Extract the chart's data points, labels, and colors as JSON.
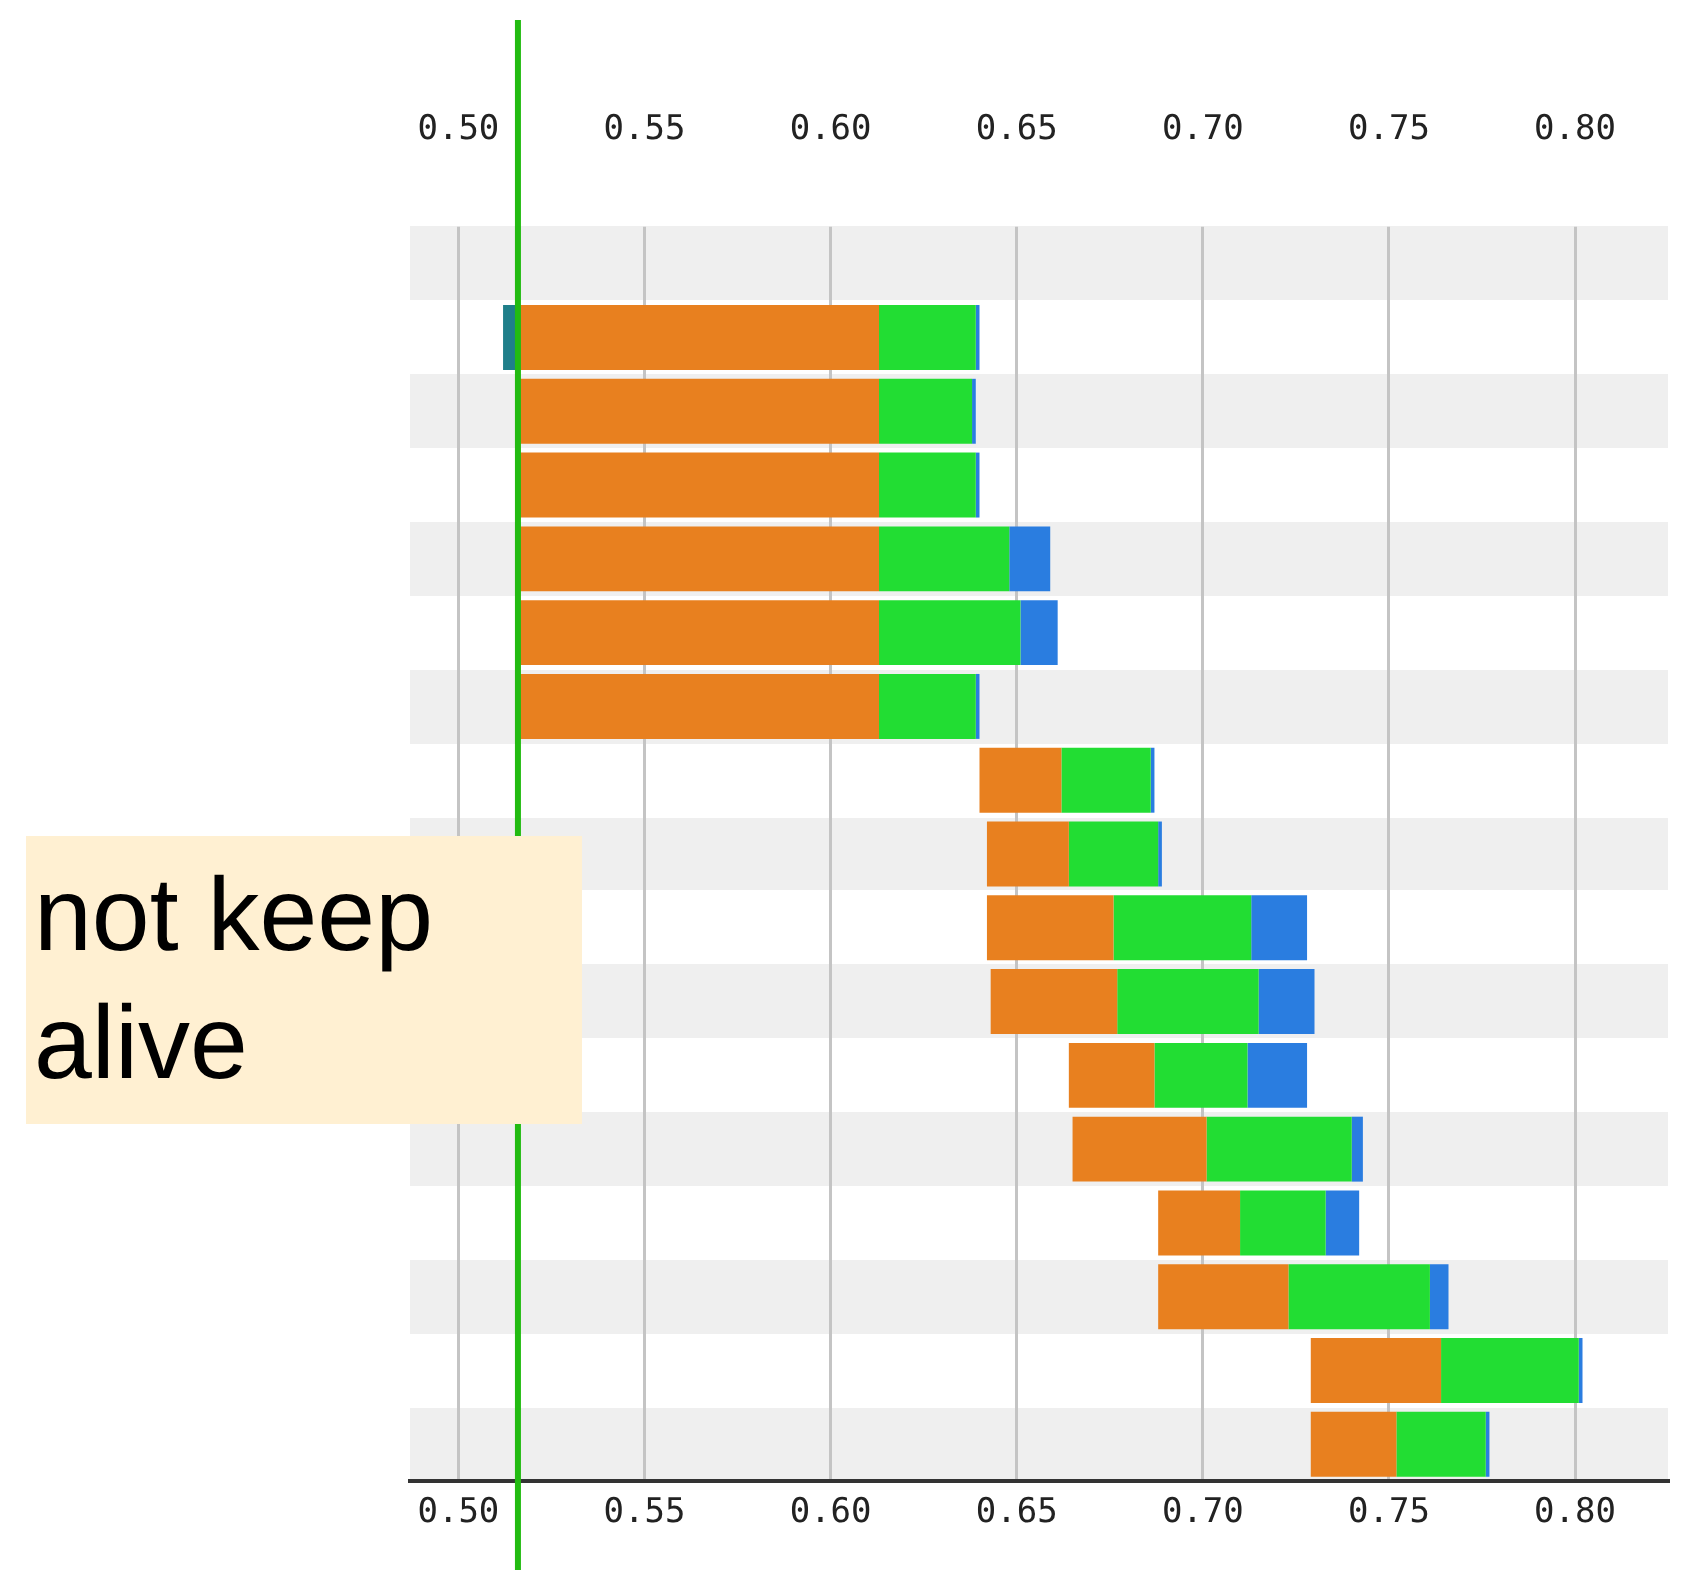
{
  "chart_data": {
    "type": "bar",
    "orientation": "horizontal",
    "categories": [
      null,
      null,
      null,
      null,
      null,
      null,
      null,
      null,
      null,
      null,
      null,
      null,
      null,
      null,
      null,
      null,
      null
    ],
    "series": [
      {
        "color": "#1f7f8a",
        "base": [
          null,
          0.512,
          null,
          null,
          null,
          null,
          null,
          null,
          null,
          null,
          null,
          null,
          null,
          null,
          null,
          null,
          null
        ],
        "values": [
          null,
          0.004,
          null,
          null,
          null,
          null,
          null,
          null,
          null,
          null,
          null,
          null,
          null,
          null,
          null,
          null,
          null
        ]
      },
      {
        "color": "#e8801f",
        "base": [
          null,
          0.516,
          0.516,
          0.516,
          0.516,
          0.516,
          0.516,
          0.64,
          0.642,
          0.642,
          0.643,
          0.664,
          0.665,
          0.688,
          0.688,
          0.729,
          0.729
        ],
        "values": [
          null,
          0.097,
          0.097,
          0.097,
          0.097,
          0.097,
          0.097,
          0.022,
          0.022,
          0.034,
          0.034,
          0.023,
          0.036,
          0.022,
          0.035,
          0.035,
          0.023
        ]
      },
      {
        "color": "#22dd33",
        "base": [
          null,
          0.613,
          0.613,
          0.613,
          0.613,
          0.613,
          0.613,
          0.662,
          0.664,
          0.676,
          0.677,
          0.687,
          0.701,
          0.71,
          0.723,
          0.764,
          0.752
        ],
        "values": [
          null,
          0.026,
          0.025,
          0.026,
          0.035,
          0.038,
          0.026,
          0.024,
          0.024,
          0.037,
          0.038,
          0.025,
          0.039,
          0.023,
          0.038,
          0.037,
          0.024
        ]
      },
      {
        "color": "#2a7de0",
        "base": [
          null,
          0.639,
          0.638,
          0.639,
          0.648,
          0.651,
          0.639,
          0.686,
          0.688,
          0.713,
          0.715,
          0.712,
          0.74,
          0.733,
          0.761,
          0.801,
          0.776
        ],
        "values": [
          null,
          0.001,
          0.001,
          0.001,
          0.011,
          0.01,
          0.001,
          0.001,
          0.001,
          0.015,
          0.015,
          0.016,
          0.003,
          0.009,
          0.005,
          0.001,
          0.001
        ]
      }
    ],
    "xlim": [
      0.487,
      0.825
    ],
    "xticks": [
      {
        "value": 0.5,
        "label": "0.50"
      },
      {
        "value": 0.55,
        "label": "0.55"
      },
      {
        "value": 0.6,
        "label": "0.60"
      },
      {
        "value": 0.65,
        "label": "0.65"
      },
      {
        "value": 0.7,
        "label": "0.70"
      },
      {
        "value": 0.75,
        "label": "0.75"
      },
      {
        "value": 0.8,
        "label": "0.80"
      }
    ],
    "x2lim": [
      0.487,
      0.825
    ],
    "x2ticks": [
      {
        "value": 0.5,
        "label": "0.50"
      },
      {
        "value": 0.55,
        "label": "0.55"
      },
      {
        "value": 0.6,
        "label": "0.60"
      },
      {
        "value": 0.65,
        "label": "0.65"
      },
      {
        "value": 0.7,
        "label": "0.70"
      },
      {
        "value": 0.75,
        "label": "0.75"
      },
      {
        "value": 0.8,
        "label": "0.80"
      }
    ],
    "grid": "x",
    "tick_labels": "x",
    "ref_lines": [
      {
        "axis": "x",
        "value": 0.516,
        "color": "#22bb11"
      }
    ],
    "annotations": [
      "not keep alive"
    ]
  }
}
